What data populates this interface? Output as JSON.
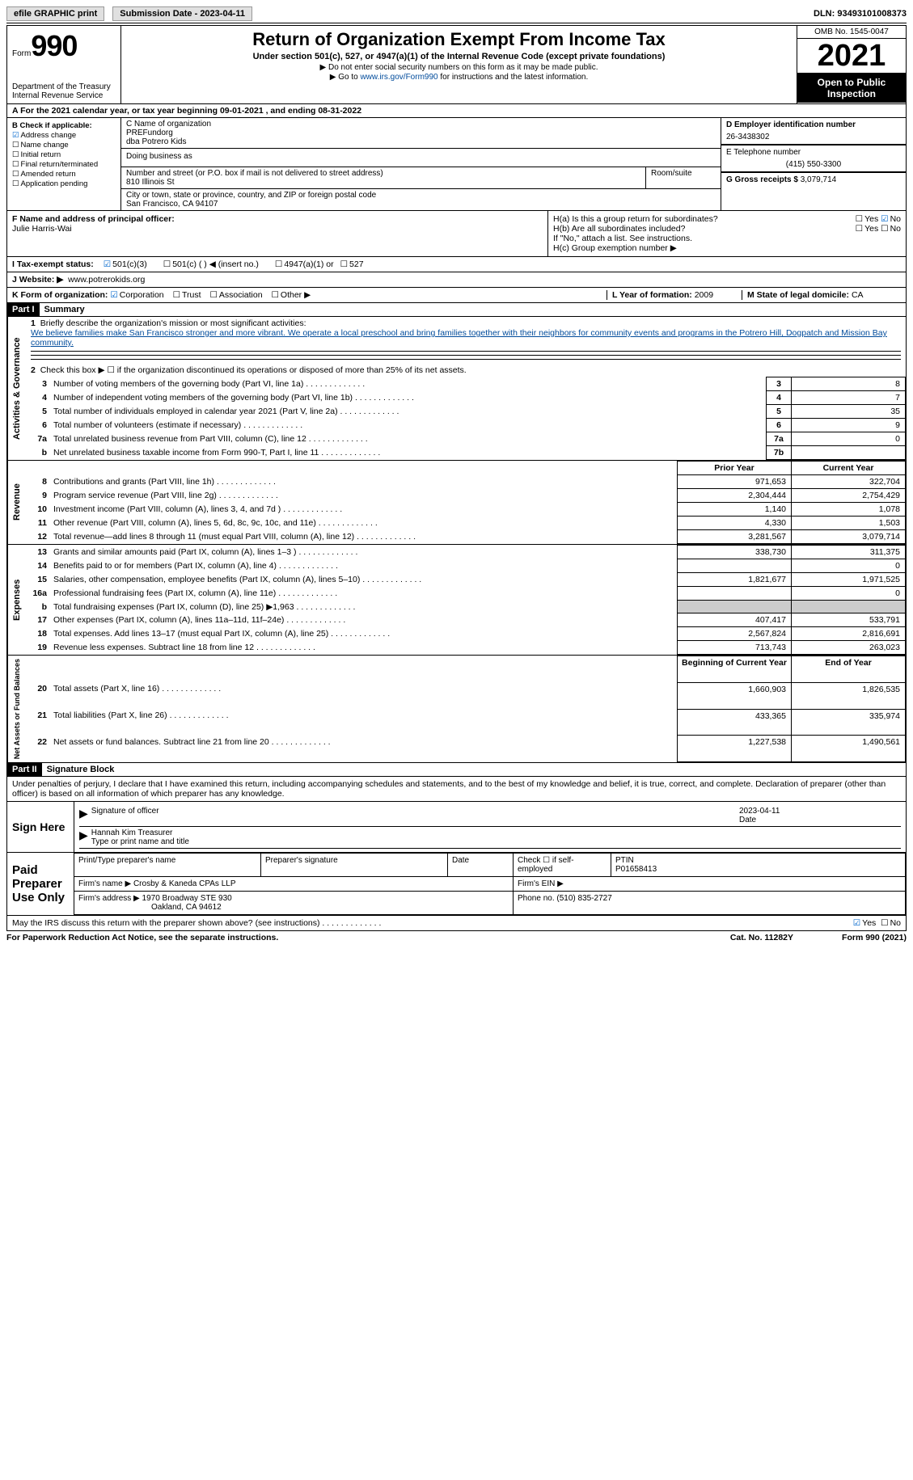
{
  "top": {
    "efile": "efile GRAPHIC print",
    "sub_date_label": "Submission Date - 2023-04-11",
    "dln": "DLN: 93493101008373"
  },
  "header": {
    "form_label": "Form",
    "form_num": "990",
    "dept": "Department of the Treasury Internal Revenue Service",
    "title": "Return of Organization Exempt From Income Tax",
    "sub": "Under section 501(c), 527, or 4947(a)(1) of the Internal Revenue Code (except private foundations)",
    "note1": "▶ Do not enter social security numbers on this form as it may be made public.",
    "note2_pre": "▶ Go to ",
    "note2_link": "www.irs.gov/Form990",
    "note2_post": " for instructions and the latest information.",
    "omb": "OMB No. 1545-0047",
    "year": "2021",
    "inspect": "Open to Public Inspection"
  },
  "row_a": "A For the 2021 calendar year, or tax year beginning 09-01-2021  , and ending 08-31-2022",
  "box_b": {
    "label": "B Check if applicable:",
    "items": [
      "Address change",
      "Name change",
      "Initial return",
      "Final return/terminated",
      "Amended return",
      "Application pending"
    ],
    "checked_idx": 0
  },
  "box_c": {
    "name_label": "C Name of organization",
    "name": "PREFundorg",
    "dba_line": "dba Potrero Kids",
    "dba_label": "Doing business as",
    "street_label": "Number and street (or P.O. box if mail is not delivered to street address)",
    "street": "810 Illinois St",
    "room_label": "Room/suite",
    "city_label": "City or town, state or province, country, and ZIP or foreign postal code",
    "city": "San Francisco, CA  94107"
  },
  "box_d": {
    "ein_label": "D Employer identification number",
    "ein": "26-3438302",
    "phone_label": "E Telephone number",
    "phone": "(415) 550-3300",
    "gross_label": "G Gross receipts $",
    "gross": "3,079,714"
  },
  "box_f": {
    "label": "F  Name and address of principal officer:",
    "name": "Julie Harris-Wai"
  },
  "box_h": {
    "ha": "H(a)  Is this a group return for subordinates?",
    "ha_no": "No",
    "hb": "H(b)  Are all subordinates included?",
    "hb_note": "If \"No,\" attach a list. See instructions.",
    "hc": "H(c)  Group exemption number ▶"
  },
  "row_i": {
    "label": "I  Tax-exempt status:",
    "opts": [
      "501(c)(3)",
      "501(c) (  ) ◀ (insert no.)",
      "4947(a)(1) or",
      "527"
    ]
  },
  "row_j": {
    "label": "J  Website: ▶",
    "val": "www.potrerokids.org"
  },
  "row_k": {
    "label": "K Form of organization:",
    "opts": [
      "Corporation",
      "Trust",
      "Association",
      "Other ▶"
    ],
    "year_label": "L Year of formation:",
    "year": "2009",
    "state_label": "M State of legal domicile:",
    "state": "CA"
  },
  "part1": {
    "hdr": "Part I",
    "title": "Summary",
    "line1_label": "Briefly describe the organization's mission or most significant activities:",
    "line1_text": "We believe families make San Francisco stronger and more vibrant. We operate a local preschool and bring families together with their neighbors for community events and programs in the Potrero Hill, Dogpatch and Mission Bay community.",
    "line2": "Check this box ▶ ☐  if the organization discontinued its operations or disposed of more than 25% of its net assets.",
    "gov_label": "Activities & Governance",
    "rev_label": "Revenue",
    "exp_label": "Expenses",
    "net_label": "Net Assets or Fund Balances",
    "lines_gov": [
      {
        "n": "3",
        "d": "Number of voting members of the governing body (Part VI, line 1a)",
        "b": "3",
        "v": "8"
      },
      {
        "n": "4",
        "d": "Number of independent voting members of the governing body (Part VI, line 1b)",
        "b": "4",
        "v": "7"
      },
      {
        "n": "5",
        "d": "Total number of individuals employed in calendar year 2021 (Part V, line 2a)",
        "b": "5",
        "v": "35"
      },
      {
        "n": "6",
        "d": "Total number of volunteers (estimate if necessary)",
        "b": "6",
        "v": "9"
      },
      {
        "n": "7a",
        "d": "Total unrelated business revenue from Part VIII, column (C), line 12",
        "b": "7a",
        "v": "0"
      },
      {
        "n": "b",
        "d": "Net unrelated business taxable income from Form 990-T, Part I, line 11",
        "b": "7b",
        "v": ""
      }
    ],
    "prior_hdr": "Prior Year",
    "curr_hdr": "Current Year",
    "lines_rev": [
      {
        "n": "8",
        "d": "Contributions and grants (Part VIII, line 1h)",
        "p": "971,653",
        "c": "322,704"
      },
      {
        "n": "9",
        "d": "Program service revenue (Part VIII, line 2g)",
        "p": "2,304,444",
        "c": "2,754,429"
      },
      {
        "n": "10",
        "d": "Investment income (Part VIII, column (A), lines 3, 4, and 7d )",
        "p": "1,140",
        "c": "1,078"
      },
      {
        "n": "11",
        "d": "Other revenue (Part VIII, column (A), lines 5, 6d, 8c, 9c, 10c, and 11e)",
        "p": "4,330",
        "c": "1,503"
      },
      {
        "n": "12",
        "d": "Total revenue—add lines 8 through 11 (must equal Part VIII, column (A), line 12)",
        "p": "3,281,567",
        "c": "3,079,714"
      }
    ],
    "lines_exp": [
      {
        "n": "13",
        "d": "Grants and similar amounts paid (Part IX, column (A), lines 1–3 )",
        "p": "338,730",
        "c": "311,375"
      },
      {
        "n": "14",
        "d": "Benefits paid to or for members (Part IX, column (A), line 4)",
        "p": "",
        "c": "0"
      },
      {
        "n": "15",
        "d": "Salaries, other compensation, employee benefits (Part IX, column (A), lines 5–10)",
        "p": "1,821,677",
        "c": "1,971,525"
      },
      {
        "n": "16a",
        "d": "Professional fundraising fees (Part IX, column (A), line 11e)",
        "p": "",
        "c": "0"
      },
      {
        "n": "b",
        "d": "Total fundraising expenses (Part IX, column (D), line 25) ▶1,963",
        "p": "shade",
        "c": "shade"
      },
      {
        "n": "17",
        "d": "Other expenses (Part IX, column (A), lines 11a–11d, 11f–24e)",
        "p": "407,417",
        "c": "533,791"
      },
      {
        "n": "18",
        "d": "Total expenses. Add lines 13–17 (must equal Part IX, column (A), line 25)",
        "p": "2,567,824",
        "c": "2,816,691"
      },
      {
        "n": "19",
        "d": "Revenue less expenses. Subtract line 18 from line 12",
        "p": "713,743",
        "c": "263,023"
      }
    ],
    "beg_hdr": "Beginning of Current Year",
    "end_hdr": "End of Year",
    "lines_net": [
      {
        "n": "20",
        "d": "Total assets (Part X, line 16)",
        "p": "1,660,903",
        "c": "1,826,535"
      },
      {
        "n": "21",
        "d": "Total liabilities (Part X, line 26)",
        "p": "433,365",
        "c": "335,974"
      },
      {
        "n": "22",
        "d": "Net assets or fund balances. Subtract line 21 from line 20",
        "p": "1,227,538",
        "c": "1,490,561"
      }
    ]
  },
  "part2": {
    "hdr": "Part II",
    "title": "Signature Block",
    "intro": "Under penalties of perjury, I declare that I have examined this return, including accompanying schedules and statements, and to the best of my knowledge and belief, it is true, correct, and complete. Declaration of preparer (other than officer) is based on all information of which preparer has any knowledge.",
    "sign_here": "Sign Here",
    "sig_officer": "Signature of officer",
    "sig_date": "2023-04-11",
    "sig_name": "Hannah Kim  Treasurer",
    "sig_type": "Type or print name and title",
    "paid": "Paid Preparer Use Only",
    "prep_name_label": "Print/Type preparer's name",
    "prep_sig_label": "Preparer's signature",
    "date_label": "Date",
    "self_emp": "Check ☐ if self-employed",
    "ptin_label": "PTIN",
    "ptin": "P01658413",
    "firm_name_label": "Firm's name    ▶",
    "firm_name": "Crosby & Kaneda CPAs LLP",
    "firm_ein_label": "Firm's EIN ▶",
    "firm_addr_label": "Firm's address ▶",
    "firm_addr": "1970 Broadway STE 930",
    "firm_city": "Oakland, CA  94612",
    "firm_phone_label": "Phone no.",
    "firm_phone": "(510) 835-2727",
    "discuss": "May the IRS discuss this return with the preparer shown above? (see instructions)",
    "yes": "Yes",
    "no": "No"
  },
  "footer": {
    "paperwork": "For Paperwork Reduction Act Notice, see the separate instructions.",
    "cat": "Cat. No. 11282Y",
    "form": "Form 990 (2021)"
  }
}
